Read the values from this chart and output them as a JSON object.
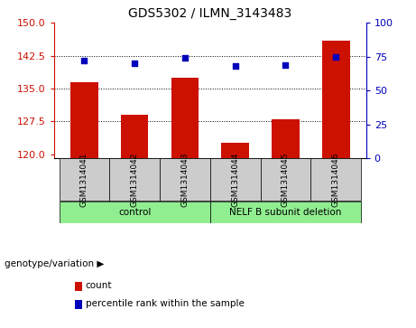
{
  "title": "GDS5302 / ILMN_3143483",
  "samples": [
    "GSM1314041",
    "GSM1314042",
    "GSM1314043",
    "GSM1314044",
    "GSM1314045",
    "GSM1314046"
  ],
  "counts": [
    136.5,
    129.0,
    137.5,
    122.5,
    128.0,
    146.0
  ],
  "percentile_ranks": [
    72,
    70,
    74,
    68,
    69,
    75
  ],
  "ylim_left": [
    119,
    150
  ],
  "ylim_right": [
    0,
    100
  ],
  "yticks_left": [
    120,
    127.5,
    135,
    142.5,
    150
  ],
  "yticks_right": [
    0,
    25,
    50,
    75,
    100
  ],
  "bar_color": "#cc1100",
  "dot_color": "#0000bb",
  "bg_color": "#ffffff",
  "gray_color": "#cccccc",
  "green_color": "#90ee90",
  "groups_info": [
    {
      "label": "control",
      "start": 0,
      "end": 2
    },
    {
      "label": "NELF B subunit deletion",
      "start": 3,
      "end": 5
    }
  ],
  "legend_count_label": "count",
  "legend_pct_label": "percentile rank within the sample",
  "group_label": "genotype/variation"
}
